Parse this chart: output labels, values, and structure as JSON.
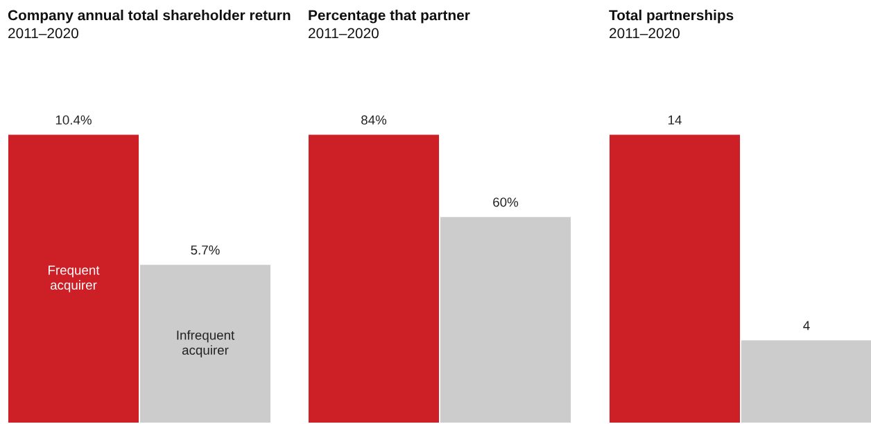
{
  "chart_data": [
    {
      "type": "bar",
      "title": "Company annual total shareholder return",
      "subtitle": "2011–2020",
      "categories": [
        null
      ],
      "series": [
        {
          "name": "Frequent acquirer",
          "color": "#cc1f26",
          "values": [
            10.4
          ],
          "value_labels": [
            "10.4%"
          ]
        },
        {
          "name": "Infrequent acquirer",
          "color": "#cccccc",
          "values": [
            5.7
          ],
          "value_labels": [
            "5.7%"
          ]
        }
      ]
    },
    {
      "type": "bar",
      "title": "Percentage that partner",
      "subtitle": "2011–2020",
      "categories": [
        null
      ],
      "series": [
        {
          "color": "#cc1f26",
          "values": [
            84
          ],
          "value_labels": [
            "84%"
          ]
        },
        {
          "color": "#cccccc",
          "values": [
            60
          ],
          "value_labels": [
            "60%"
          ]
        }
      ]
    },
    {
      "type": "bar",
      "title": "Total partnerships",
      "subtitle": "2011–2020",
      "categories": [
        null
      ],
      "data_labels": true,
      "series": [
        {
          "color": "#cc1f26",
          "values": [
            14
          ]
        },
        {
          "color": "#cccccc",
          "values": [
            4
          ]
        }
      ]
    }
  ]
}
